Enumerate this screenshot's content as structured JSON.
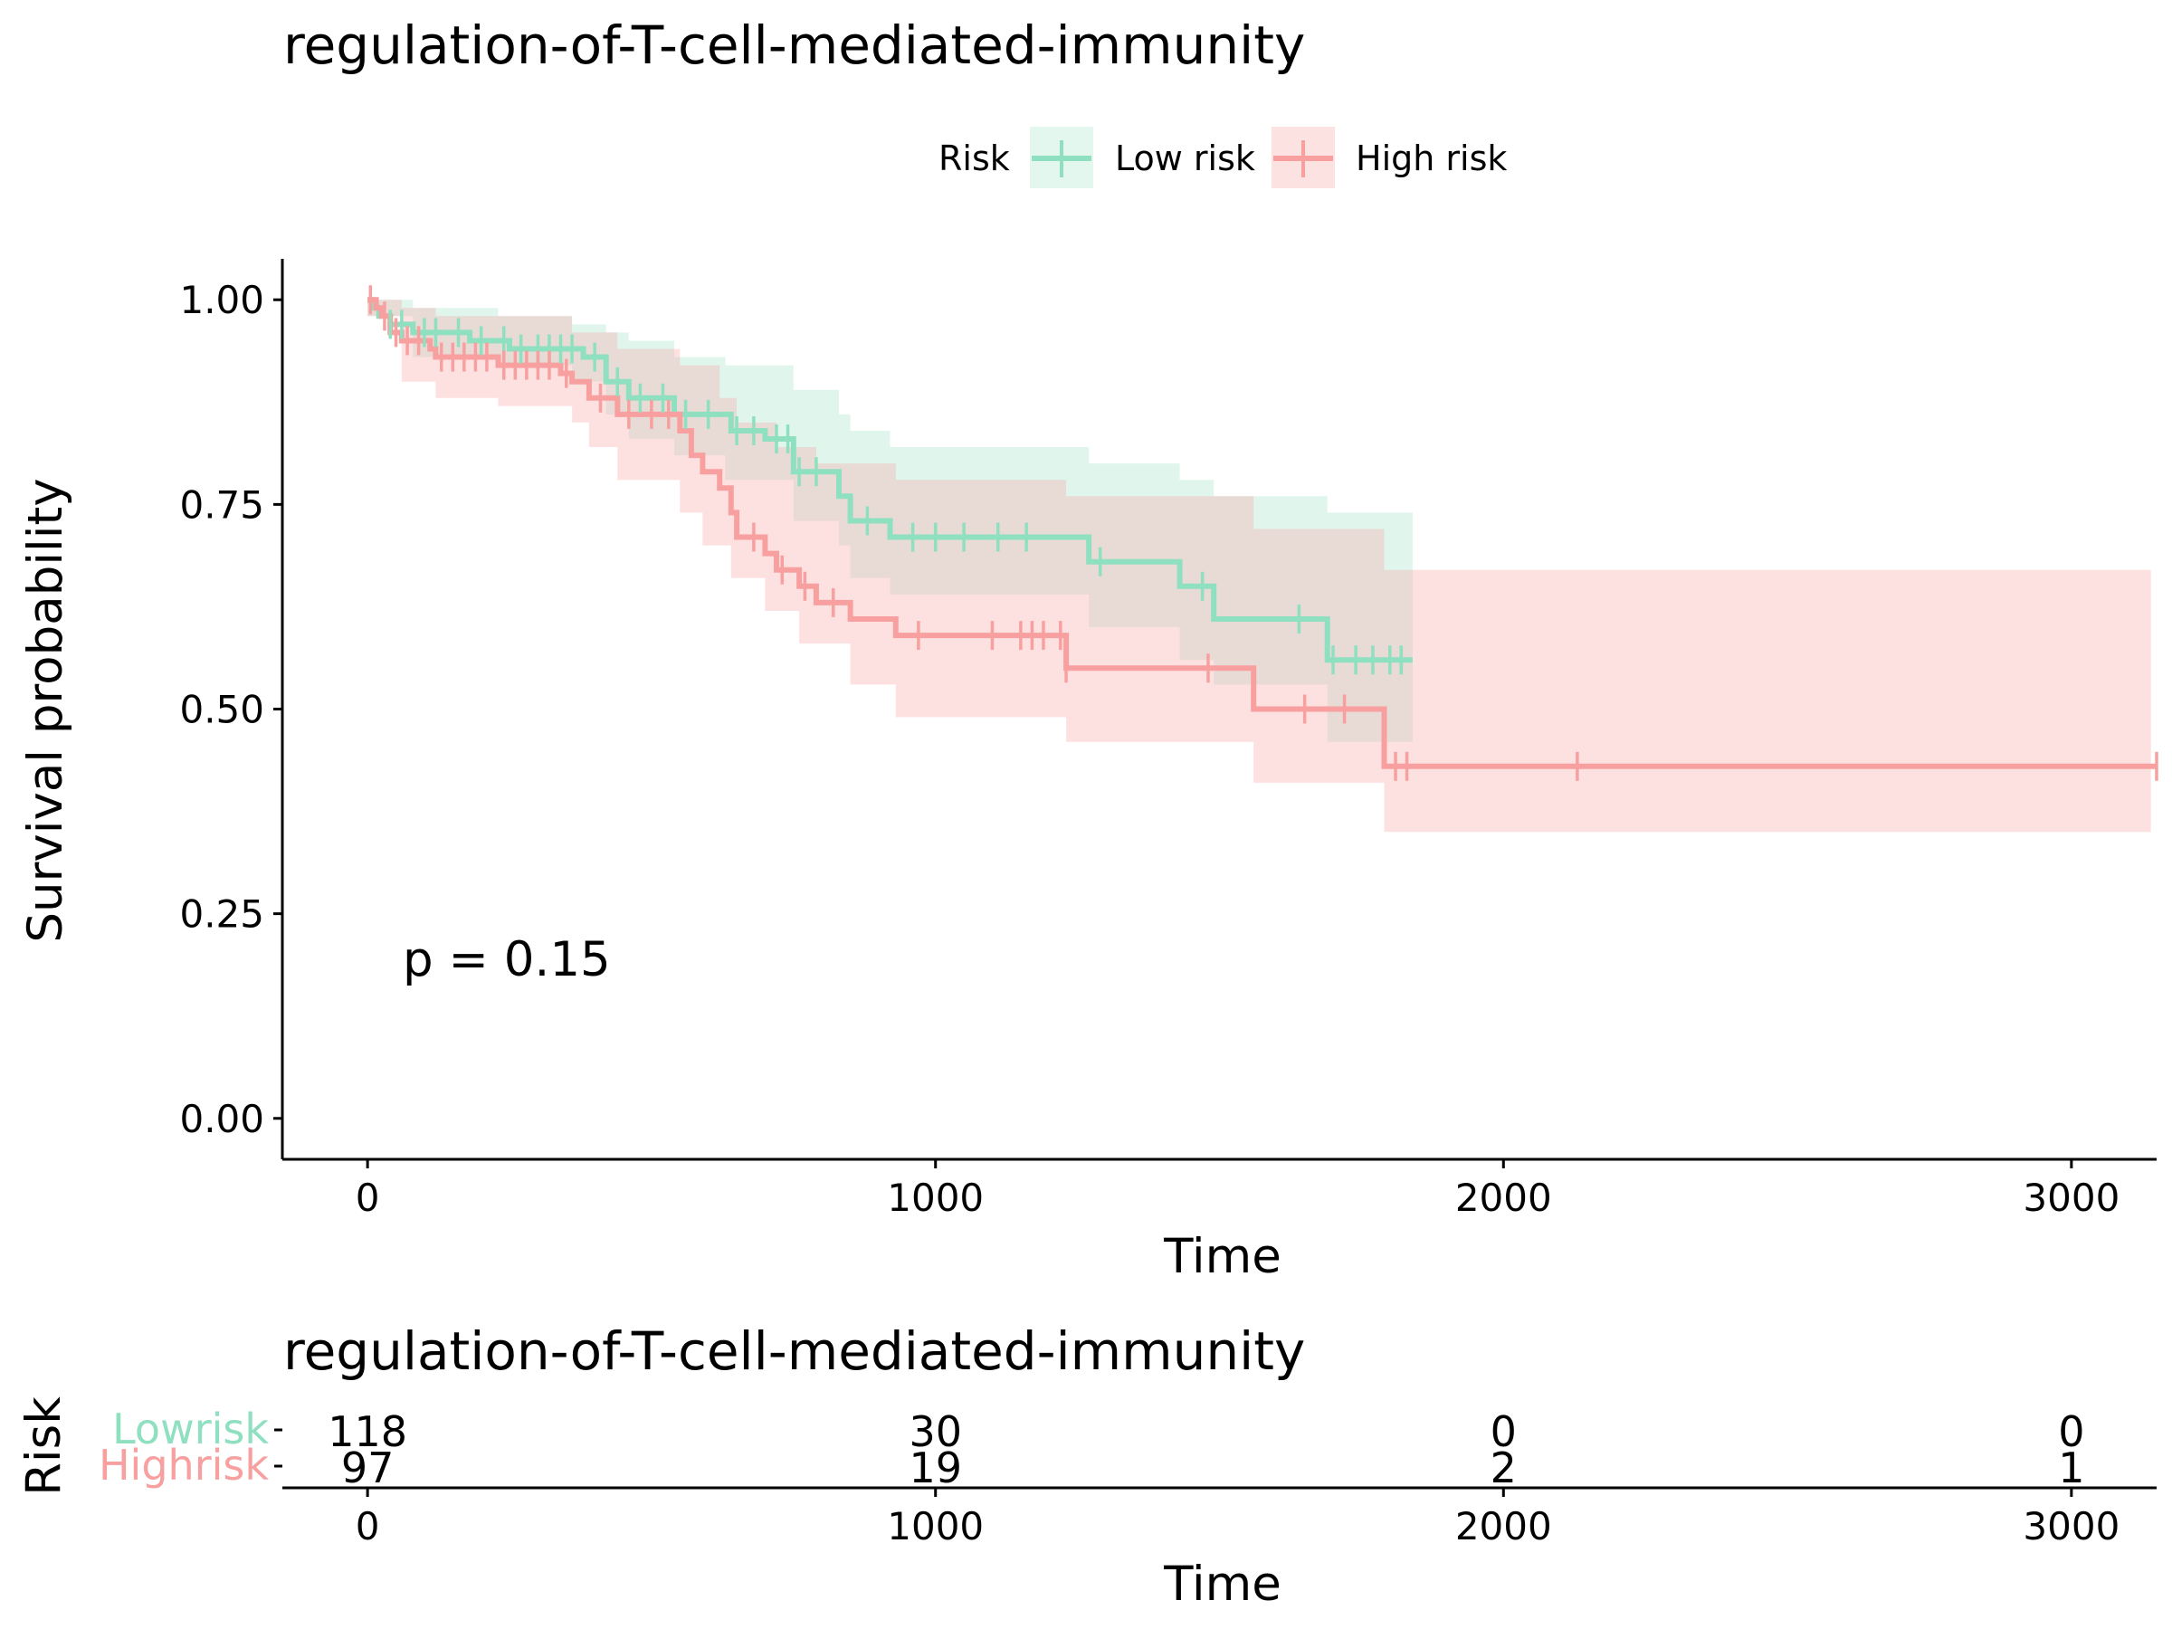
{
  "chart_data": [
    {
      "type": "line",
      "subtype": "kaplan-meier",
      "title": "regulation-of-T-cell-mediated-immunity",
      "xlabel": "Time",
      "ylabel": "Survival probability",
      "xlim": [
        -150,
        3150
      ],
      "ylim": [
        -0.05,
        1.05
      ],
      "xticks": [
        0,
        1000,
        2000,
        3000
      ],
      "yticks": [
        0.0,
        0.25,
        0.5,
        0.75,
        1.0
      ],
      "ytick_labels": [
        "0.00",
        "0.25",
        "0.50",
        "0.75",
        "1.00"
      ],
      "grid": false,
      "legend": {
        "title": "Risk",
        "placement": "top",
        "entries": [
          "Low risk",
          "High risk"
        ]
      },
      "annotation": "p = 0.15",
      "series": [
        {
          "name": "Low risk",
          "color": "#8fe0c0",
          "steps": [
            [
              0,
              1.0
            ],
            [
              10,
              0.99
            ],
            [
              20,
              0.98
            ],
            [
              40,
              0.97
            ],
            [
              80,
              0.96
            ],
            [
              180,
              0.95
            ],
            [
              250,
              0.94
            ],
            [
              380,
              0.93
            ],
            [
              420,
              0.9
            ],
            [
              460,
              0.88
            ],
            [
              540,
              0.86
            ],
            [
              640,
              0.84
            ],
            [
              700,
              0.83
            ],
            [
              750,
              0.79
            ],
            [
              830,
              0.76
            ],
            [
              850,
              0.73
            ],
            [
              920,
              0.71
            ],
            [
              1270,
              0.68
            ],
            [
              1430,
              0.65
            ],
            [
              1490,
              0.61
            ],
            [
              1690,
              0.56
            ],
            [
              1840,
              0.56
            ]
          ],
          "ci_upper": [
            [
              0,
              1.0
            ],
            [
              80,
              0.99
            ],
            [
              230,
              0.98
            ],
            [
              360,
              0.97
            ],
            [
              420,
              0.96
            ],
            [
              460,
              0.95
            ],
            [
              540,
              0.93
            ],
            [
              630,
              0.92
            ],
            [
              750,
              0.89
            ],
            [
              830,
              0.86
            ],
            [
              850,
              0.84
            ],
            [
              920,
              0.82
            ],
            [
              1270,
              0.8
            ],
            [
              1430,
              0.78
            ],
            [
              1490,
              0.76
            ],
            [
              1690,
              0.74
            ],
            [
              1840,
              0.74
            ]
          ],
          "ci_lower": [
            [
              0,
              0.98
            ],
            [
              80,
              0.93
            ],
            [
              230,
              0.92
            ],
            [
              360,
              0.9
            ],
            [
              420,
              0.86
            ],
            [
              460,
              0.83
            ],
            [
              540,
              0.81
            ],
            [
              630,
              0.78
            ],
            [
              750,
              0.73
            ],
            [
              830,
              0.7
            ],
            [
              850,
              0.66
            ],
            [
              920,
              0.64
            ],
            [
              1270,
              0.6
            ],
            [
              1430,
              0.56
            ],
            [
              1490,
              0.53
            ],
            [
              1690,
              0.46
            ],
            [
              1840,
              0.46
            ]
          ],
          "censor": [
            40,
            60,
            100,
            120,
            160,
            200,
            240,
            270,
            300,
            320,
            340,
            360,
            400,
            440,
            480,
            520,
            560,
            600,
            650,
            680,
            720,
            740,
            760,
            790,
            880,
            960,
            1000,
            1050,
            1110,
            1160,
            1290,
            1470,
            1640,
            1700,
            1740,
            1770,
            1800,
            1820
          ]
        },
        {
          "name": "High risk",
          "color": "#f8a0a0",
          "steps": [
            [
              0,
              1.0
            ],
            [
              15,
              0.99
            ],
            [
              25,
              0.98
            ],
            [
              40,
              0.96
            ],
            [
              60,
              0.95
            ],
            [
              110,
              0.94
            ],
            [
              120,
              0.93
            ],
            [
              200,
              0.93
            ],
            [
              230,
              0.92
            ],
            [
              340,
              0.91
            ],
            [
              360,
              0.9
            ],
            [
              390,
              0.88
            ],
            [
              440,
              0.86
            ],
            [
              550,
              0.84
            ],
            [
              570,
              0.81
            ],
            [
              590,
              0.79
            ],
            [
              620,
              0.77
            ],
            [
              640,
              0.74
            ],
            [
              650,
              0.71
            ],
            [
              700,
              0.69
            ],
            [
              720,
              0.67
            ],
            [
              760,
              0.65
            ],
            [
              790,
              0.63
            ],
            [
              850,
              0.61
            ],
            [
              930,
              0.59
            ],
            [
              1230,
              0.55
            ],
            [
              1560,
              0.5
            ],
            [
              1790,
              0.43
            ],
            [
              3150,
              0.43
            ]
          ],
          "ci_upper": [
            [
              0,
              1.0
            ],
            [
              60,
              0.99
            ],
            [
              120,
              0.98
            ],
            [
              360,
              0.96
            ],
            [
              440,
              0.94
            ],
            [
              550,
              0.92
            ],
            [
              620,
              0.88
            ],
            [
              650,
              0.85
            ],
            [
              720,
              0.82
            ],
            [
              790,
              0.8
            ],
            [
              930,
              0.78
            ],
            [
              1230,
              0.76
            ],
            [
              1560,
              0.72
            ],
            [
              1790,
              0.67
            ],
            [
              3140,
              0.67
            ]
          ],
          "ci_lower": [
            [
              0,
              0.98
            ],
            [
              60,
              0.9
            ],
            [
              120,
              0.88
            ],
            [
              230,
              0.87
            ],
            [
              360,
              0.85
            ],
            [
              390,
              0.82
            ],
            [
              440,
              0.78
            ],
            [
              550,
              0.74
            ],
            [
              590,
              0.7
            ],
            [
              640,
              0.66
            ],
            [
              700,
              0.62
            ],
            [
              760,
              0.58
            ],
            [
              850,
              0.53
            ],
            [
              930,
              0.49
            ],
            [
              1230,
              0.46
            ],
            [
              1560,
              0.41
            ],
            [
              1790,
              0.35
            ],
            [
              3140,
              0.27
            ]
          ],
          "censor": [
            5,
            30,
            50,
            70,
            90,
            130,
            150,
            170,
            190,
            210,
            240,
            260,
            280,
            300,
            320,
            350,
            410,
            460,
            500,
            530,
            680,
            730,
            770,
            820,
            970,
            1100,
            1150,
            1170,
            1190,
            1220,
            1230,
            1480,
            1650,
            1720,
            1810,
            1830,
            2130,
            3150
          ]
        }
      ]
    },
    {
      "type": "table",
      "title": "regulation-of-T-cell-mediated-immunity",
      "xlabel": "Time",
      "ylabel": "Risk",
      "xlim": [
        -150,
        3150
      ],
      "xticks": [
        0,
        1000,
        2000,
        3000
      ],
      "rows": [
        {
          "name": "Low risk",
          "label": "Lowrisk",
          "color": "#8fe0c0",
          "values": [
            118,
            30,
            0,
            0
          ]
        },
        {
          "name": "High risk",
          "label": "Highrisk",
          "color": "#f8a0a0",
          "values": [
            97,
            19,
            2,
            1
          ]
        }
      ]
    }
  ]
}
